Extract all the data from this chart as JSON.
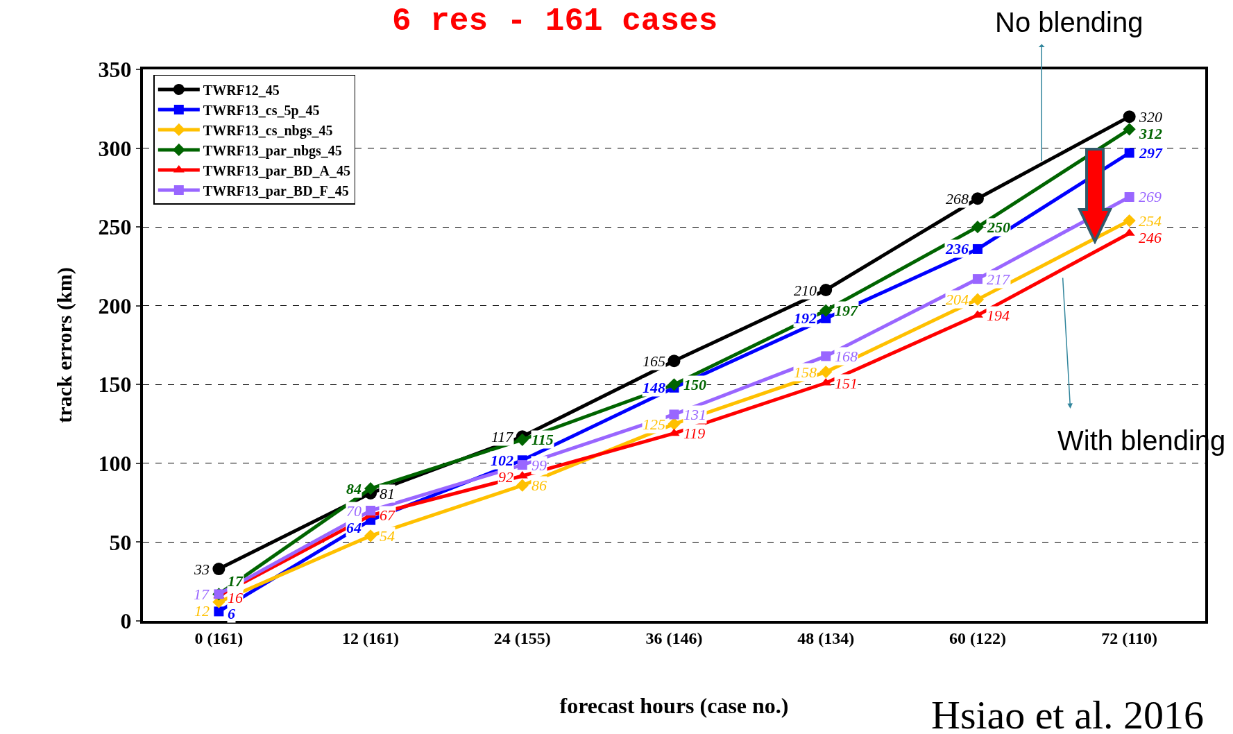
{
  "chart_data": {
    "type": "line",
    "title": "6 res - 161 cases",
    "xlabel": "forecast hours (case no.)",
    "ylabel": "track errors (km)",
    "categories": [
      "0 (161)",
      "12 (161)",
      "24 (155)",
      "36 (146)",
      "48 (134)",
      "60 (122)",
      "72 (110)"
    ],
    "series": [
      {
        "name": "TWRF12_45",
        "color": "#000000",
        "marker": "circle",
        "values": [
          33,
          81,
          117,
          165,
          210,
          268,
          320
        ]
      },
      {
        "name": "TWRF13_cs_5p_45",
        "color": "#0000ff",
        "marker": "square",
        "values": [
          6,
          64,
          102,
          148,
          192,
          236,
          297
        ]
      },
      {
        "name": "TWRF13_cs_nbgs_45",
        "color": "#ffc000",
        "marker": "diamond",
        "values": [
          12,
          54,
          86,
          125,
          158,
          204,
          254
        ]
      },
      {
        "name": "TWRF13_par_nbgs_45",
        "color": "#006400",
        "marker": "diamond",
        "values": [
          17,
          84,
          115,
          150,
          197,
          250,
          312
        ]
      },
      {
        "name": "TWRF13_par_BD_A_45",
        "color": "#ff0000",
        "marker": "triangle",
        "values": [
          16,
          67,
          92,
          119,
          151,
          194,
          246
        ]
      },
      {
        "name": "TWRF13_par_BD_F_45",
        "color": "#9966ff",
        "marker": "square",
        "values": [
          17,
          70,
          99,
          131,
          168,
          217,
          269
        ]
      }
    ],
    "ylim": [
      0,
      350
    ],
    "yticks": [
      0,
      50,
      100,
      150,
      200,
      250,
      300,
      350
    ],
    "grid": "y",
    "legend": "top left",
    "data_labels": true,
    "line_style": "solid",
    "annotations": [
      "No blending",
      "With blending",
      "Hsiao et al. 2016"
    ]
  }
}
